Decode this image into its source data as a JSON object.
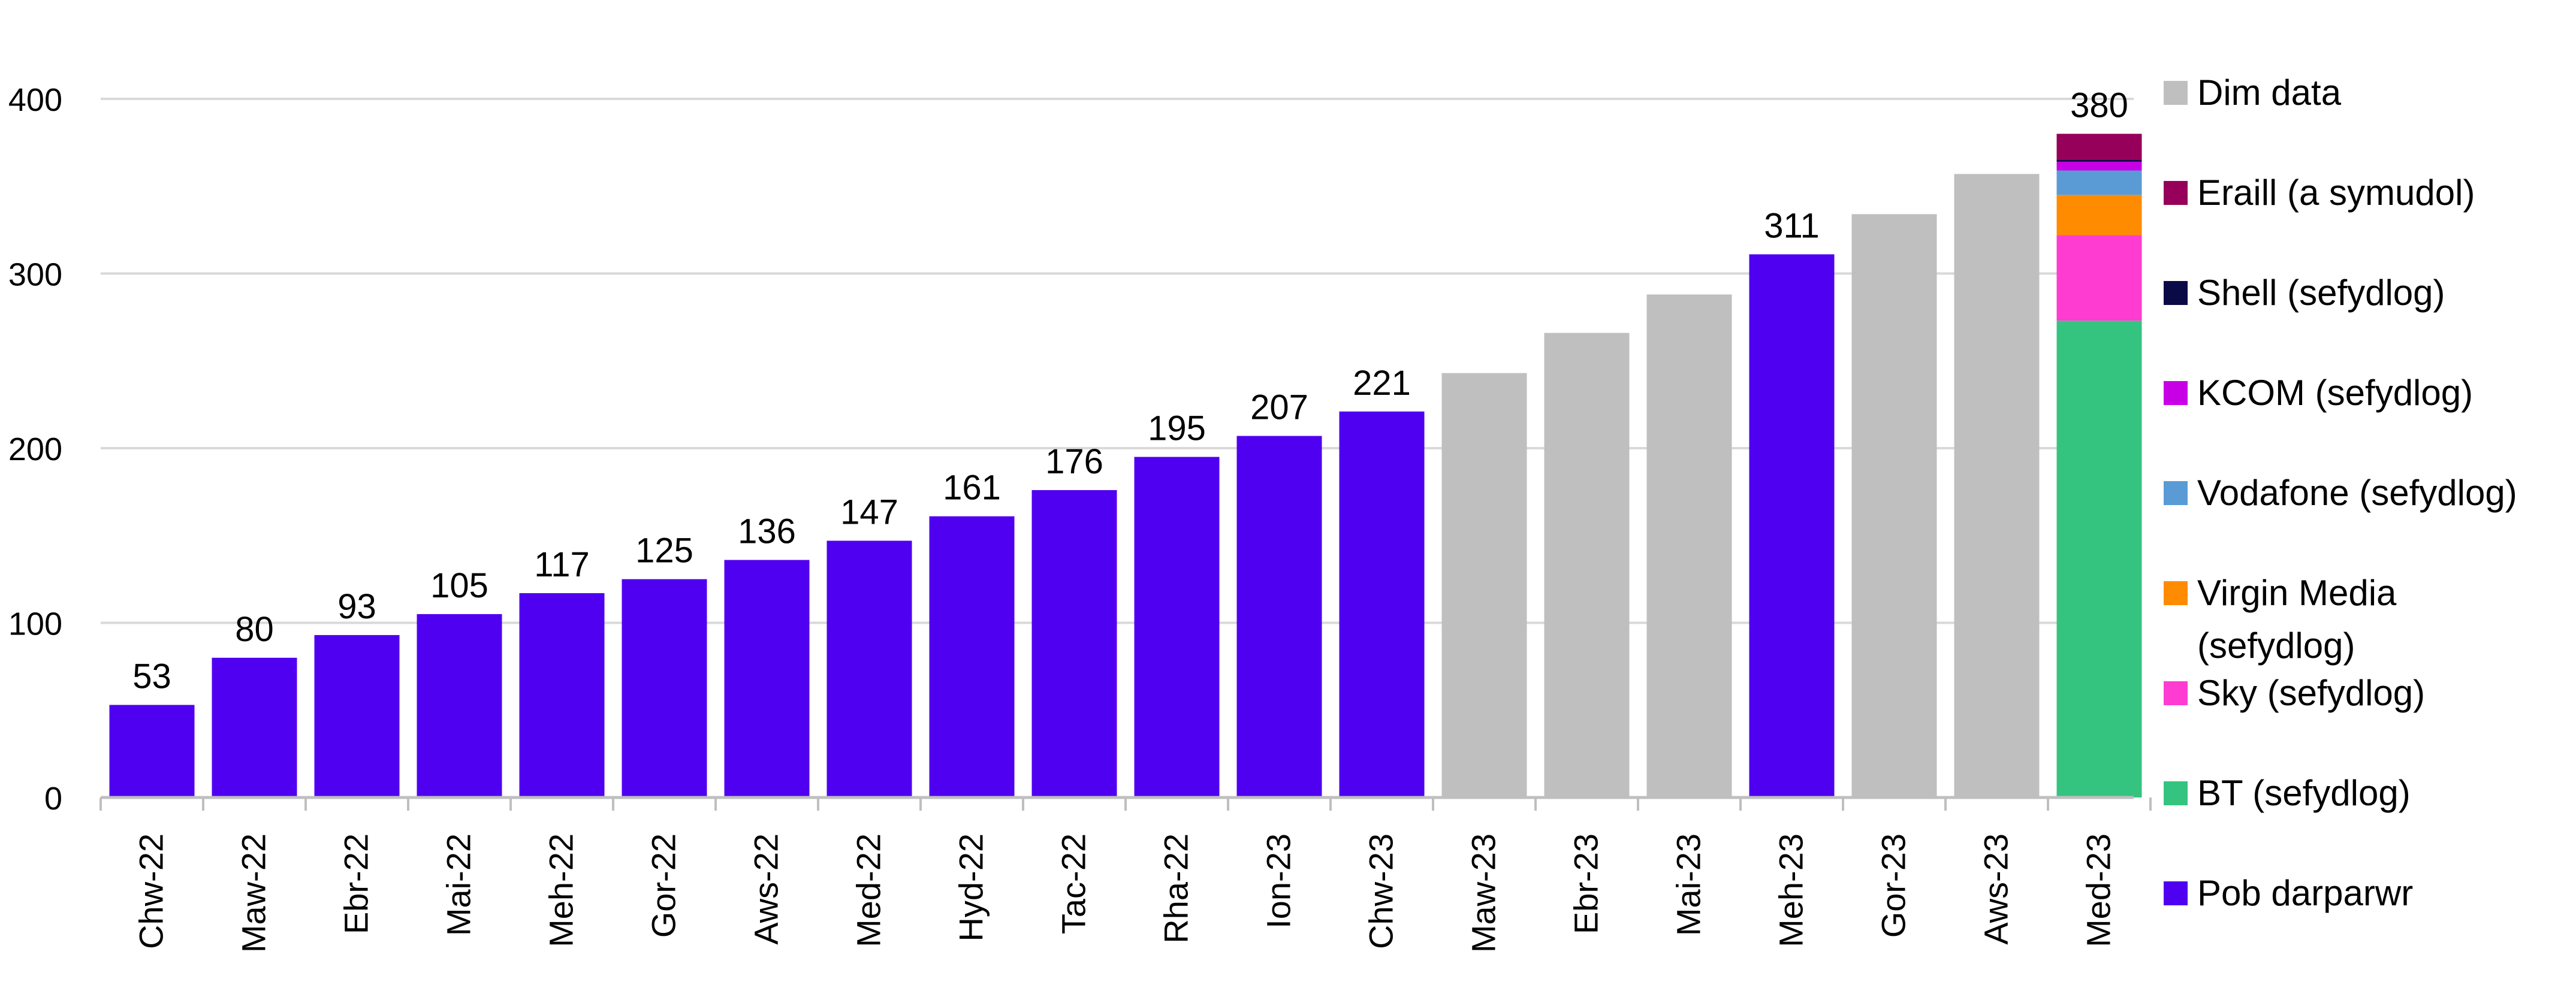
{
  "chart_data": {
    "type": "bar",
    "categories": [
      "Chw-22",
      "Maw-22",
      "Ebr-22",
      "Mai-22",
      "Meh-22",
      "Gor-22",
      "Aws-22",
      "Med-22",
      "Hyd-22",
      "Tac-22",
      "Rha-22",
      "Ion-23",
      "Chw-23",
      "Maw-23",
      "Ebr-23",
      "Mai-23",
      "Meh-23",
      "Gor-23",
      "Aws-23",
      "Med-23"
    ],
    "series": [
      {
        "name": "Pob darparwr",
        "color": "#5000F0",
        "values": [
          53,
          80,
          93,
          105,
          117,
          125,
          136,
          147,
          161,
          176,
          195,
          207,
          221,
          null,
          null,
          null,
          311,
          null,
          null,
          null
        ]
      },
      {
        "name": "Dim data",
        "color": "#BFBFBF",
        "values": [
          null,
          null,
          null,
          null,
          null,
          null,
          null,
          null,
          null,
          null,
          null,
          null,
          null,
          243,
          266,
          288,
          null,
          334,
          357,
          null
        ]
      },
      {
        "name": "BT (sefydlog)",
        "color": "#35C480",
        "values": [
          null,
          null,
          null,
          null,
          null,
          null,
          null,
          null,
          null,
          null,
          null,
          null,
          null,
          null,
          null,
          null,
          null,
          null,
          null,
          273
        ]
      },
      {
        "name": "Sky (sefydlog)",
        "color": "#FF3CD2",
        "values": [
          null,
          null,
          null,
          null,
          null,
          null,
          null,
          null,
          null,
          null,
          null,
          null,
          null,
          null,
          null,
          null,
          null,
          null,
          null,
          49
        ]
      },
      {
        "name": "Virgin Media (sefydlog)",
        "color": "#FF8C00",
        "values": [
          null,
          null,
          null,
          null,
          null,
          null,
          null,
          null,
          null,
          null,
          null,
          null,
          null,
          null,
          null,
          null,
          null,
          null,
          null,
          23
        ]
      },
      {
        "name": "Vodafone (sefydlog)",
        "color": "#5B9BD5",
        "values": [
          null,
          null,
          null,
          null,
          null,
          null,
          null,
          null,
          null,
          null,
          null,
          null,
          null,
          null,
          null,
          null,
          null,
          null,
          null,
          14
        ]
      },
      {
        "name": "KCOM (sefydlog)",
        "color": "#C800E6",
        "values": [
          null,
          null,
          null,
          null,
          null,
          null,
          null,
          null,
          null,
          null,
          null,
          null,
          null,
          null,
          null,
          null,
          null,
          null,
          null,
          5
        ]
      },
      {
        "name": "Shell (sefydlog)",
        "color": "#0A0A46",
        "values": [
          null,
          null,
          null,
          null,
          null,
          null,
          null,
          null,
          null,
          null,
          null,
          null,
          null,
          null,
          null,
          null,
          null,
          null,
          null,
          1
        ]
      },
      {
        "name": "Eraill (a symudol)",
        "color": "#96005A",
        "values": [
          null,
          null,
          null,
          null,
          null,
          null,
          null,
          null,
          null,
          null,
          null,
          null,
          null,
          null,
          null,
          null,
          null,
          null,
          null,
          15
        ]
      }
    ],
    "data_labels": [
      "53",
      "80",
      "93",
      "105",
      "117",
      "125",
      "136",
      "147",
      "161",
      "176",
      "195",
      "207",
      "221",
      "",
      "",
      "",
      "311",
      "",
      "",
      "380"
    ],
    "ylim": [
      0,
      400
    ],
    "yticks": [
      "0",
      "100",
      "200",
      "300",
      "400"
    ],
    "grid": true,
    "stacked": true,
    "legend_position": "right",
    "legend": [
      {
        "label": "Dim data",
        "color": "#BFBFBF"
      },
      {
        "label": "Eraill (a symudol)",
        "color": "#96005A"
      },
      {
        "label": "Shell (sefydlog)",
        "color": "#0A0A46"
      },
      {
        "label": "KCOM (sefydlog)",
        "color": "#C800E6"
      },
      {
        "label": "Vodafone (sefydlog)",
        "color": "#5B9BD5"
      },
      {
        "label": "Virgin Media (sefydlog)",
        "color": "#FF8C00"
      },
      {
        "label": "Sky (sefydlog)",
        "color": "#FF3CD2"
      },
      {
        "label": "BT (sefydlog)",
        "color": "#35C480"
      },
      {
        "label": "Pob darparwr",
        "color": "#5000F0"
      }
    ]
  }
}
